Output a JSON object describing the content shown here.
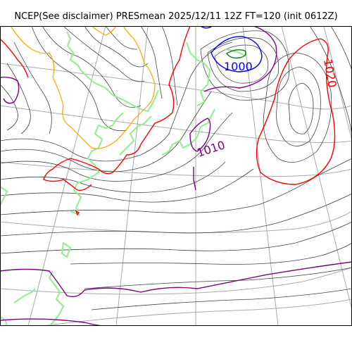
{
  "title": "NCEP(See disclaimer) PRESmean 2025/12/11 12Z FT=120 (init 0612Z)",
  "colors": {
    "coast": "#90ee90",
    "isobar": "#444444",
    "contour_1000": "#0000ff",
    "contour_1008": "#800080",
    "contour_1012": "#ff0000",
    "contour_996": "#008000",
    "contour_orange": "#ffa500",
    "graticule": "#aaaaaa"
  },
  "labels": {
    "p1000": "1000",
    "p1010": "1010",
    "p1020": "1020"
  }
}
